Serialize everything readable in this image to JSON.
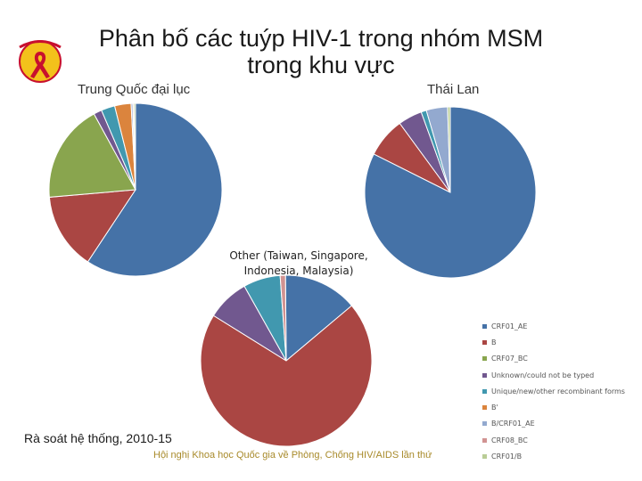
{
  "slide": {
    "title_line1": "Phân bố các tuýp HIV-1 trong nhóm MSM",
    "title_line2": "trong khu vực",
    "footer_review": "Rà soát hệ thống, 2010-15",
    "footer_conference": "Hội nghị Khoa học Quốc gia về Phòng, Chống HIV/AIDS lần thứ",
    "other_label": [
      "Other (Taiwan, Singapore,",
      "Indonesia, Malaysia)"
    ]
  },
  "colors": {
    "CRF01_AE": "#4572a7",
    "B": "#aa4643",
    "CRF07_BC": "#89a54e",
    "Unknown": "#71588f",
    "Unique": "#4198af",
    "B'": "#db843d",
    "B/CRF01_AE": "#93a9cf",
    "CRF08_BC": "#d19392",
    "CRF01/B": "#b9cd96"
  },
  "chart_data": [
    {
      "type": "pie",
      "title": "Trung Quốc đại lục",
      "series": [
        {
          "name": "CRF01_AE",
          "value": 58
        },
        {
          "name": "B",
          "value": 14
        },
        {
          "name": "CRF07_BC",
          "value": 18
        },
        {
          "name": "Unknown/could not be typed",
          "value": 1.5
        },
        {
          "name": "Unique/new/other recombinant forms",
          "value": 2.5
        },
        {
          "name": "B'",
          "value": 3
        },
        {
          "name": "B/CRF01_AE",
          "value": 0.3
        },
        {
          "name": "CRF08_BC",
          "value": 0.2
        },
        {
          "name": "CRF01/B",
          "value": 0.3
        }
      ]
    },
    {
      "type": "pie",
      "title": "Thái Lan",
      "series": [
        {
          "name": "CRF01_AE",
          "value": 82
        },
        {
          "name": "B",
          "value": 7.5
        },
        {
          "name": "CRF07_BC",
          "value": 0
        },
        {
          "name": "Unknown/could not be typed",
          "value": 4.5
        },
        {
          "name": "Unique/new/other recombinant forms",
          "value": 1
        },
        {
          "name": "B'",
          "value": 0
        },
        {
          "name": "B/CRF01_AE",
          "value": 4
        },
        {
          "name": "CRF08_BC",
          "value": 0
        },
        {
          "name": "CRF01/B",
          "value": 0.5
        }
      ]
    },
    {
      "type": "pie",
      "title": "Other (Taiwan, Singapore, Indonesia, Malaysia)",
      "series": [
        {
          "name": "CRF01_AE",
          "value": 14
        },
        {
          "name": "B",
          "value": 70
        },
        {
          "name": "CRF07_BC",
          "value": 0
        },
        {
          "name": "Unknown/could not be typed",
          "value": 8
        },
        {
          "name": "Unique/new/other recombinant forms",
          "value": 7
        },
        {
          "name": "B'",
          "value": 0
        },
        {
          "name": "B/CRF01_AE",
          "value": 0
        },
        {
          "name": "CRF08_BC",
          "value": 1
        },
        {
          "name": "CRF01/B",
          "value": 0
        }
      ]
    }
  ],
  "legend": [
    {
      "key": "CRF01_AE",
      "label": "CRF01_AE"
    },
    {
      "key": "B",
      "label": "B"
    },
    {
      "key": "CRF07_BC",
      "label": "CRF07_BC"
    },
    {
      "key": "Unknown",
      "label": "Unknown/could not be typed"
    },
    {
      "key": "Unique",
      "label": "Unique/new/other recombinant forms"
    },
    {
      "key": "B'",
      "label": "B'"
    },
    {
      "key": "B/CRF01_AE",
      "label": "B/CRF01_AE"
    },
    {
      "key": "CRF08_BC",
      "label": "CRF08_BC"
    },
    {
      "key": "CRF01/B",
      "label": "CRF01/B"
    }
  ]
}
